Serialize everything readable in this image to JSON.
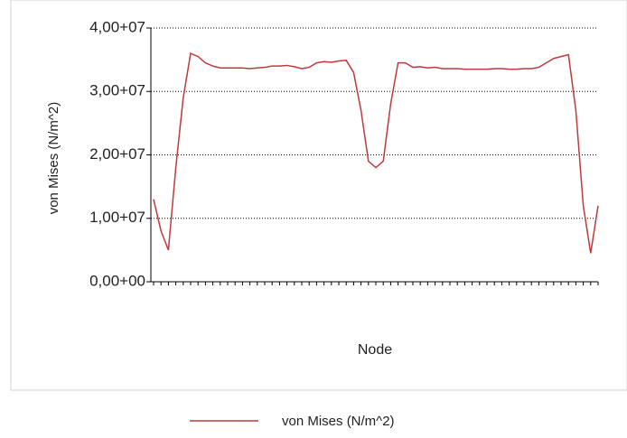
{
  "chart_data": {
    "type": "line",
    "y_label": "von Mises (N/m^2)",
    "x_label": "Node",
    "categories": [
      null,
      null,
      null,
      null,
      null,
      null,
      null,
      null,
      null,
      null,
      null,
      null,
      null,
      null,
      null,
      null,
      null,
      null,
      null,
      null,
      null,
      null,
      null,
      null,
      null,
      null,
      null,
      null,
      null,
      null,
      null,
      null,
      null,
      null,
      null,
      null,
      null,
      null,
      null,
      null,
      null,
      null,
      null,
      null,
      null,
      null,
      null,
      null,
      null,
      null,
      null,
      null,
      null,
      null,
      null,
      null,
      null,
      null,
      null,
      null,
      null
    ],
    "series": [
      {
        "name": "von Mises (N/m^2)",
        "color": "#c0393b",
        "values": [
          13000000,
          8000000,
          5000000,
          18000000,
          29000000,
          36000000,
          35500000,
          34500000,
          34000000,
          33700000,
          33700000,
          33700000,
          33700000,
          33600000,
          33700000,
          33800000,
          34000000,
          34000000,
          34100000,
          33900000,
          33600000,
          33800000,
          34500000,
          34700000,
          34600000,
          34800000,
          34900000,
          33000000,
          27000000,
          19000000,
          18000000,
          19000000,
          28000000,
          34500000,
          34500000,
          33800000,
          33900000,
          33700000,
          33800000,
          33600000,
          33600000,
          33600000,
          33500000,
          33500000,
          33500000,
          33500000,
          33600000,
          33600000,
          33500000,
          33500000,
          33600000,
          33600000,
          33800000,
          34500000,
          35200000,
          35500000,
          35800000,
          27000000,
          12000000,
          4500000,
          12000000
        ]
      }
    ],
    "ylim": [
      0,
      40000000
    ],
    "yticks": [
      {
        "value": 0,
        "label": "0,00+00"
      },
      {
        "value": 10000000,
        "label": "1,00+07"
      },
      {
        "value": 20000000,
        "label": "2,00+07"
      },
      {
        "value": 30000000,
        "label": "3,00+07"
      },
      {
        "value": 40000000,
        "label": "4,00+07"
      }
    ],
    "grid": true,
    "legend": "bottom"
  }
}
